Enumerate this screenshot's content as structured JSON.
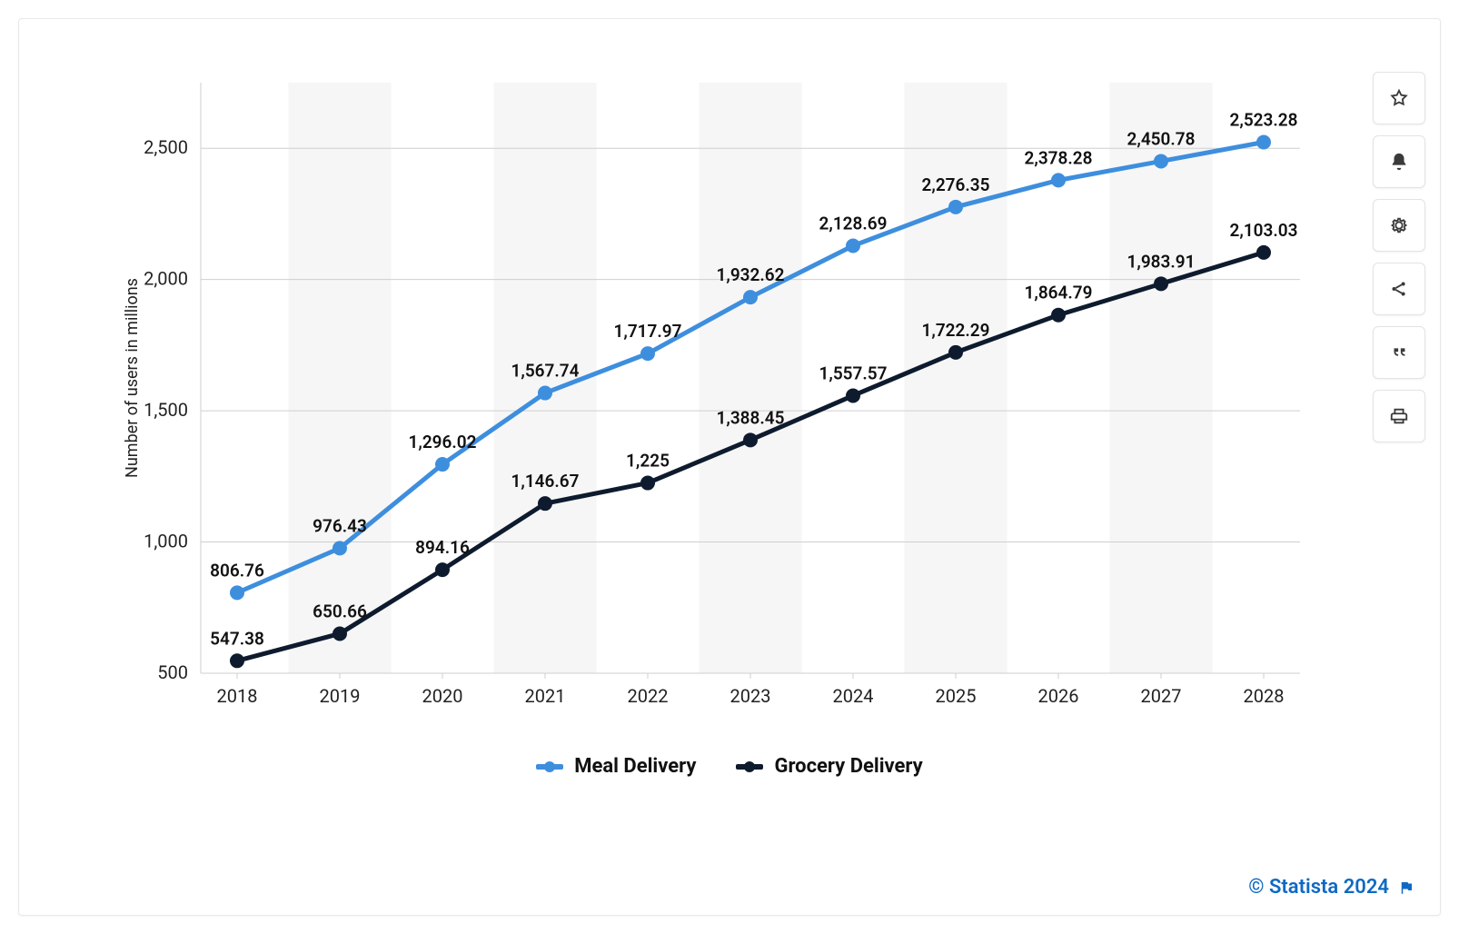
{
  "chart": {
    "type": "line",
    "ylabel": "Number of users in millions",
    "label_fontsize": 18,
    "label_color": "#222222",
    "categories": [
      "2018",
      "2019",
      "2020",
      "2021",
      "2022",
      "2023",
      "2024",
      "2025",
      "2026",
      "2027",
      "2028"
    ],
    "ylim": [
      500,
      2750
    ],
    "ytick_step": 500,
    "yticks": [
      "500",
      "1,000",
      "1,500",
      "2,000",
      "2,500"
    ],
    "background_color": "#ffffff",
    "alt_band_color": "#f6f6f6",
    "axis_color": "#cfcfcf",
    "tick_label_color": "#222222",
    "tick_label_fontsize": 20,
    "data_label_fontsize": 19,
    "data_label_color": "#111111",
    "line_width": 5,
    "marker_radius": 8,
    "series": [
      {
        "name": "Meal Delivery",
        "color": "#3e8ede",
        "values": [
          806.76,
          976.43,
          1296.02,
          1567.74,
          1717.97,
          1932.62,
          2128.69,
          2276.35,
          2378.28,
          2450.78,
          2523.28
        ],
        "labels": [
          "806.76",
          "976.43",
          "1,296.02",
          "1,567.74",
          "1,717.97",
          "1,932.62",
          "2,128.69",
          "2,276.35",
          "2,378.28",
          "2,450.78",
          "2,523.28"
        ]
      },
      {
        "name": "Grocery Delivery",
        "color": "#0e1b2e",
        "values": [
          547.38,
          650.66,
          894.16,
          1146.67,
          1225,
          1388.45,
          1557.57,
          1722.29,
          1864.79,
          1983.91,
          2103.03
        ],
        "labels": [
          "547.38",
          "650.66",
          "894.16",
          "1,146.67",
          "1,225",
          "1,388.45",
          "1,557.57",
          "1,722.29",
          "1,864.79",
          "1,983.91",
          "2,103.03"
        ]
      }
    ]
  },
  "toolbar": {
    "icons": [
      "star",
      "bell",
      "gear",
      "share",
      "quote",
      "print"
    ],
    "icon_color": "#3a3a3a"
  },
  "attribution": {
    "text": "© Statista 2024",
    "color": "#0f69c4"
  }
}
